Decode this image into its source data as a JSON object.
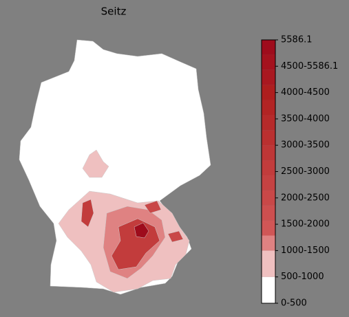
{
  "title": "Seitz",
  "colorbar": {
    "labels": [
      "0-500",
      "500-1000",
      "1000-1500",
      "1500-2000",
      "2000-2500",
      "2500-3000",
      "3000-3500",
      "3500-4000",
      "4000-4500",
      "4500-5586.1",
      "5586.1"
    ],
    "colors": [
      "#ffffff",
      "#efc0c0",
      "#df8282",
      "#d05656",
      "#cd4f4f",
      "#c94848",
      "#c54242",
      "#c23c3c",
      "#be3636",
      "#ba3030",
      "#b62a2a",
      "#b22424",
      "#ae1e1e",
      "#a91820",
      "#a4121e",
      "#9e0c1c"
    ]
  }
}
